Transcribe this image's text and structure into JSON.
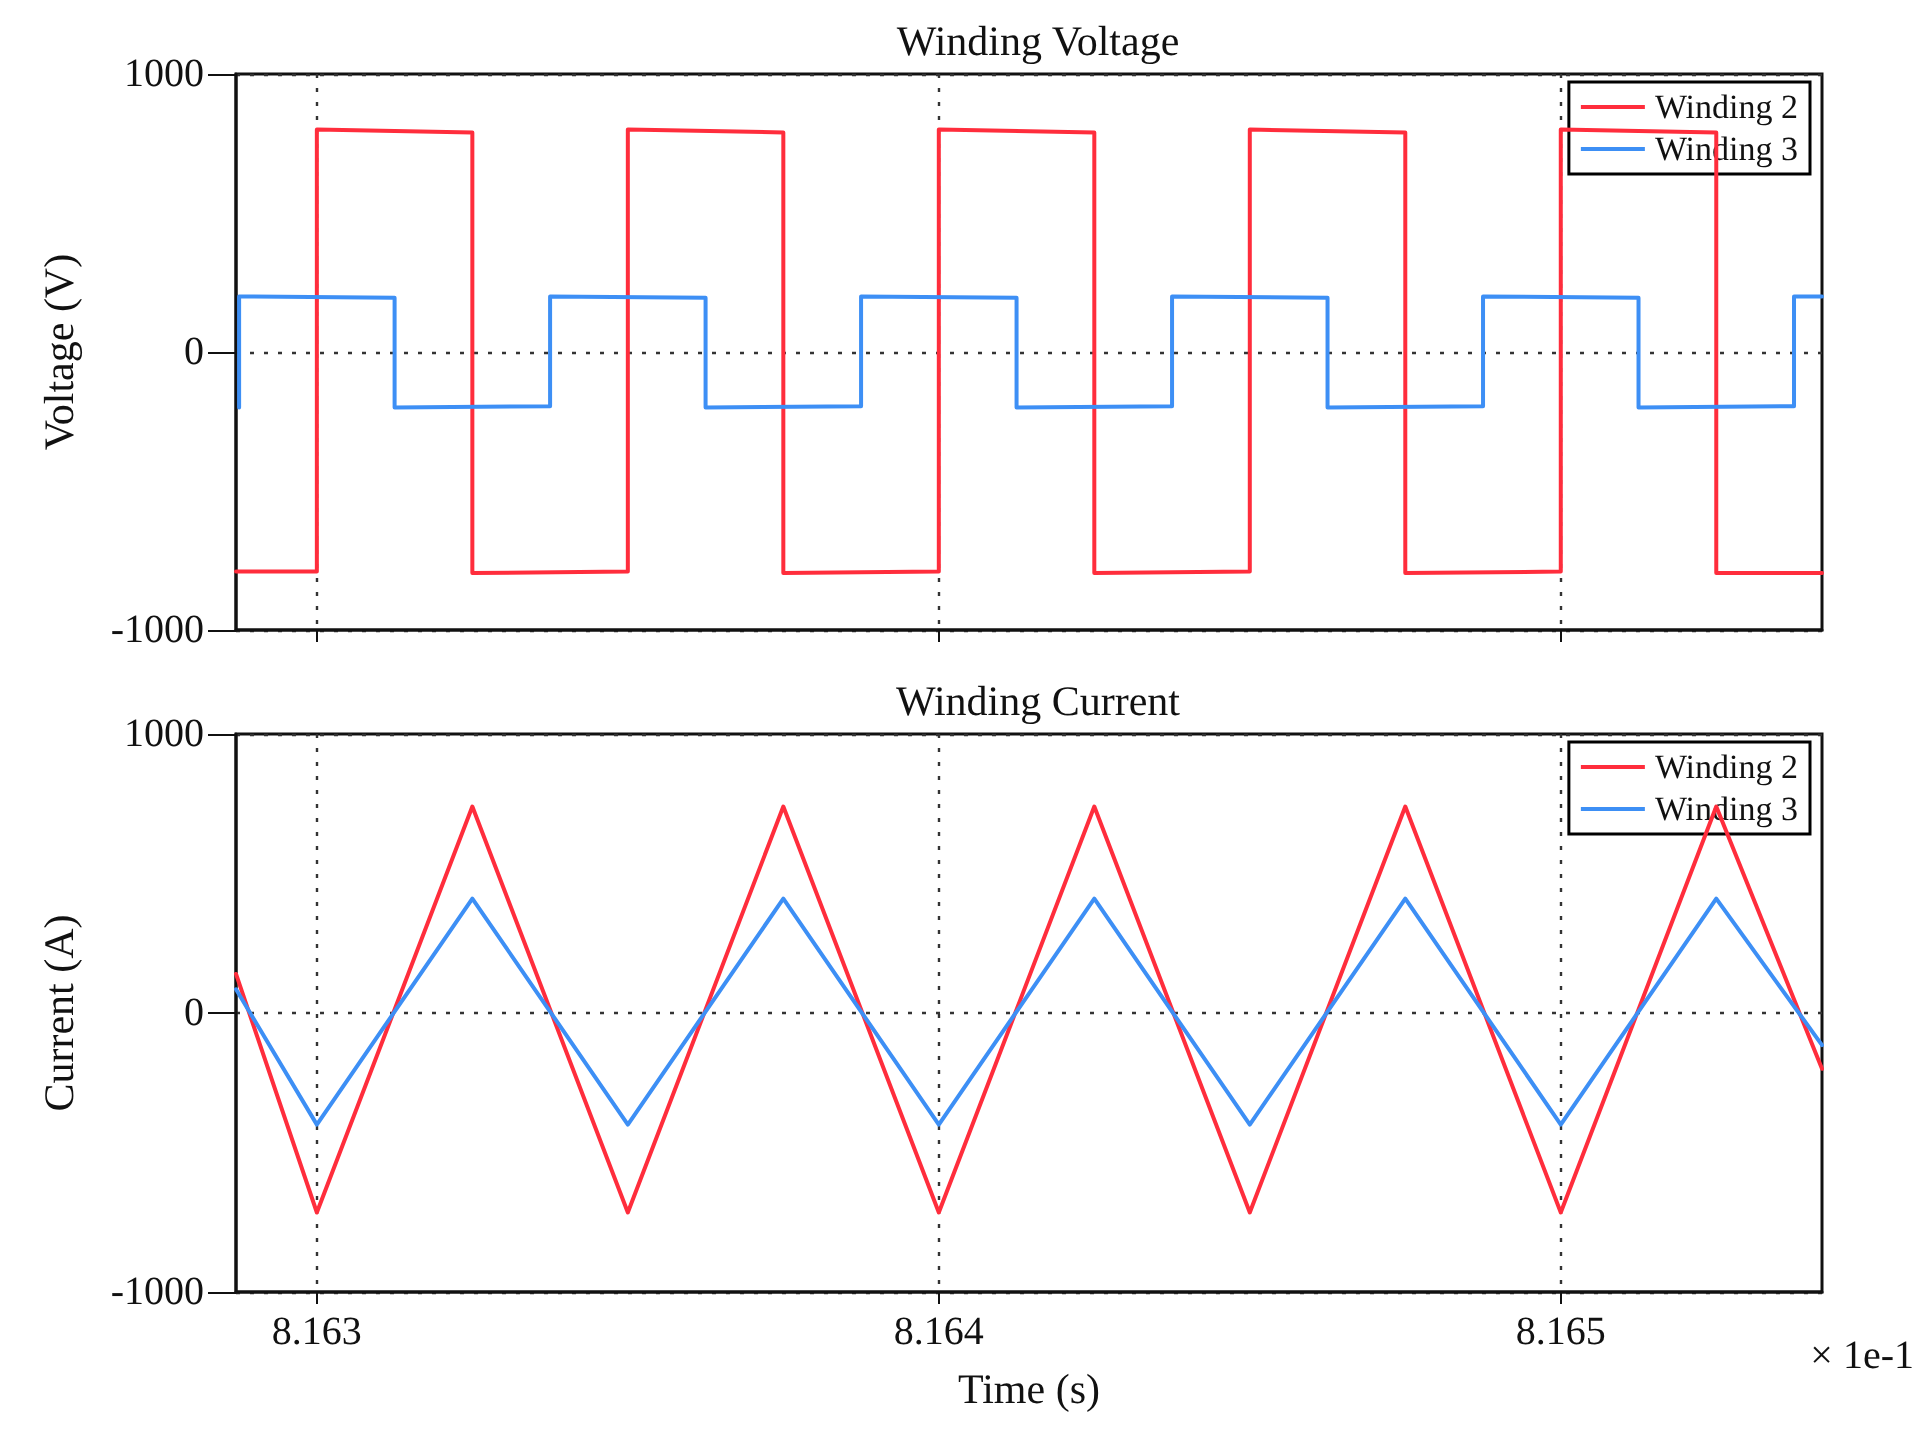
{
  "chart_data": [
    {
      "type": "line",
      "title": "Winding Voltage",
      "ylabel": "Voltage (V)",
      "xlim": [
        8.16287,
        8.16542
      ],
      "xticks": [
        8.163,
        8.164,
        8.165
      ],
      "ylim": [
        -1000,
        1000
      ],
      "yticks": [
        -1000,
        0,
        1000
      ],
      "grid": true,
      "legend": "top right",
      "marker": "none",
      "line_style": "solid",
      "tick_labels": "y",
      "series": [
        {
          "name": "Winding 2",
          "color": "#ff2d3c",
          "x": [
            8.16287,
            8.163,
            8.163,
            8.16325,
            8.16325,
            8.1635,
            8.1635,
            8.16375,
            8.16375,
            8.164,
            8.164,
            8.16425,
            8.16425,
            8.1645,
            8.1645,
            8.16475,
            8.16475,
            8.165,
            8.165,
            8.16525,
            8.16525,
            8.16542
          ],
          "values": [
            -790,
            -790,
            800,
            790,
            -795,
            -790,
            800,
            790,
            -795,
            -790,
            800,
            790,
            -795,
            -790,
            800,
            790,
            -795,
            -790,
            800,
            790,
            -795,
            -795
          ]
        },
        {
          "name": "Winding 3",
          "color": "#3d8ff5",
          "x": [
            8.162875,
            8.162875,
            8.163125,
            8.163125,
            8.163375,
            8.163375,
            8.163625,
            8.163625,
            8.163875,
            8.163875,
            8.164125,
            8.164125,
            8.164375,
            8.164375,
            8.164625,
            8.164625,
            8.164875,
            8.164875,
            8.165125,
            8.165125,
            8.165375,
            8.165375,
            8.16542
          ],
          "values": [
            -200,
            200,
            195,
            -200,
            -195,
            200,
            195,
            -200,
            -195,
            200,
            195,
            -200,
            -195,
            200,
            195,
            -200,
            -195,
            200,
            195,
            -200,
            -195,
            200,
            200
          ]
        }
      ]
    },
    {
      "type": "line",
      "title": "Winding Current",
      "xlabel": "Time (s)",
      "ylabel": "Current (A)",
      "xlim": [
        8.16287,
        8.16542
      ],
      "xticks": [
        8.163,
        8.164,
        8.165
      ],
      "ylim": [
        -1000,
        1000
      ],
      "yticks": [
        -1000,
        0,
        1000
      ],
      "grid": true,
      "legend": "top right",
      "marker": "none",
      "line_style": "solid",
      "annotations": [
        "× 1e-1"
      ],
      "series": [
        {
          "name": "Winding 2",
          "color": "#ff2d3c",
          "x": [
            8.16287,
            8.163,
            8.16325,
            8.1635,
            8.16375,
            8.164,
            8.16425,
            8.1645,
            8.16475,
            8.165,
            8.16525,
            8.16542
          ],
          "values": [
            140,
            -715,
            740,
            -715,
            740,
            -715,
            740,
            -715,
            740,
            -715,
            740,
            -200
          ]
        },
        {
          "name": "Winding 3",
          "color": "#3d8ff5",
          "x": [
            8.16287,
            8.163,
            8.16325,
            8.1635,
            8.16375,
            8.164,
            8.16425,
            8.1645,
            8.16475,
            8.165,
            8.16525,
            8.16542
          ],
          "values": [
            85,
            -400,
            410,
            -400,
            410,
            -400,
            410,
            -400,
            410,
            -400,
            410,
            -115
          ]
        }
      ]
    }
  ]
}
